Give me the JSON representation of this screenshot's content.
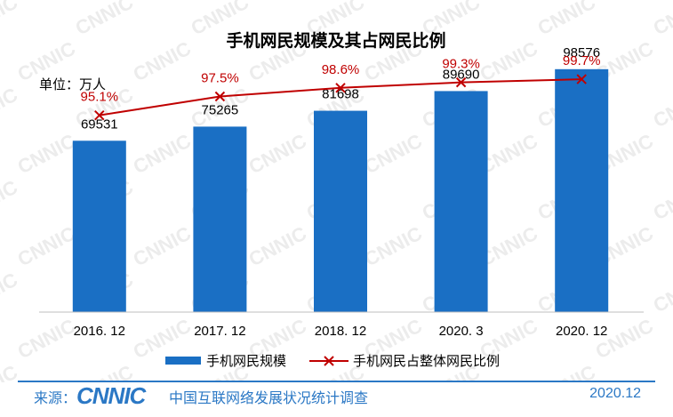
{
  "chart_data": {
    "type": "bar",
    "title": "手机网民规模及其占网民比例",
    "unit_label": "单位：万人",
    "categories": [
      "2016. 12",
      "2017. 12",
      "2018. 12",
      "2020. 3",
      "2020. 12"
    ],
    "series": [
      {
        "name": "手机网民规模",
        "type": "bar",
        "values": [
          69531,
          75265,
          81698,
          89690,
          98576
        ],
        "labels": [
          "69531",
          "75265",
          "81698",
          "89690",
          "98576"
        ]
      },
      {
        "name": "手机网民占整体网民比例",
        "type": "line",
        "values": [
          95.1,
          97.5,
          98.6,
          99.3,
          99.7
        ],
        "labels": [
          "95.1%",
          "97.5%",
          "98.6%",
          "99.3%",
          "99.7%"
        ]
      }
    ],
    "bar_ylim": [
      0,
      105000
    ],
    "line_ylim": [
      70,
      103
    ],
    "legend": "bottom",
    "grid": false,
    "colors": {
      "bar": "#1a6fc4",
      "line": "#c00000"
    }
  },
  "footer": {
    "source_label": "来源：",
    "logo": "CNNIC",
    "org": "中国互联网络发展状况统计调查",
    "date": "2020.12"
  },
  "watermark": "CNNIC"
}
